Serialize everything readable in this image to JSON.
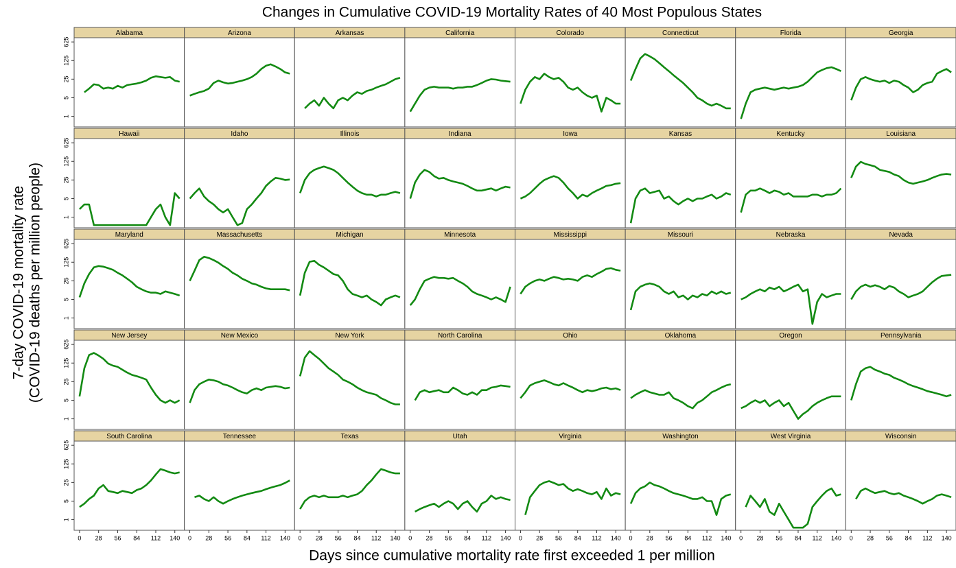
{
  "chart_data": {
    "type": "line",
    "title": "Changes in Cumulative COVID-19 Mortality Rates of 40 Most Populous States",
    "xlabel": "Days since cumulative mortality rate first exceeded 1 per million",
    "ylabel": [
      "7-day COVID-19 mortality rate",
      "(COVID-19 deaths per million people)"
    ],
    "log_scale_y": true,
    "xlim": [
      -8,
      154
    ],
    "xticks": [
      0,
      28,
      56,
      84,
      112,
      140
    ],
    "ylim": [
      0.4,
      900
    ],
    "yticks": [
      1,
      5,
      25,
      125,
      625
    ],
    "x": [
      0,
      7,
      14,
      21,
      28,
      35,
      42,
      49,
      56,
      63,
      70,
      77,
      84,
      91,
      98,
      105,
      112,
      119,
      126,
      133,
      140,
      147
    ],
    "series": [
      {
        "name": "Alabama",
        "color": "#138a13",
        "values": [
          null,
          8,
          11,
          16,
          15,
          11,
          12,
          11,
          14,
          12,
          15,
          16,
          17,
          19,
          22,
          28,
          32,
          30,
          28,
          30,
          22,
          20
        ]
      },
      {
        "name": "Arizona",
        "color": "#138a13",
        "values": [
          6,
          7,
          8,
          9,
          11,
          18,
          22,
          19,
          17,
          18,
          20,
          22,
          25,
          30,
          40,
          60,
          80,
          90,
          75,
          60,
          45,
          40
        ]
      },
      {
        "name": "Arkansas",
        "color": "#138a13",
        "values": [
          null,
          2,
          3,
          4,
          2.5,
          5,
          3,
          2,
          4,
          5,
          4,
          6,
          8,
          7,
          9,
          10,
          12,
          14,
          16,
          20,
          25,
          28
        ]
      },
      {
        "name": "California",
        "color": "#138a13",
        "values": [
          1.5,
          3,
          6,
          10,
          12,
          13,
          12,
          12,
          12,
          11,
          12,
          12,
          13,
          13,
          15,
          18,
          22,
          25,
          24,
          22,
          21,
          20
        ]
      },
      {
        "name": "Colorado",
        "color": "#138a13",
        "values": [
          3,
          10,
          20,
          30,
          25,
          40,
          30,
          25,
          28,
          20,
          12,
          10,
          12,
          8,
          6,
          5,
          6,
          1.5,
          5,
          4,
          3,
          3
        ]
      },
      {
        "name": "Connecticut",
        "color": "#138a13",
        "values": [
          22,
          60,
          150,
          220,
          180,
          140,
          100,
          70,
          50,
          35,
          25,
          18,
          12,
          8,
          5,
          4,
          3,
          2.5,
          3,
          2.5,
          2,
          2
        ]
      },
      {
        "name": "Florida",
        "color": "#138a13",
        "values": [
          0.8,
          3,
          8,
          10,
          11,
          12,
          11,
          10,
          11,
          12,
          11,
          12,
          13,
          15,
          20,
          30,
          45,
          55,
          65,
          70,
          60,
          50
        ]
      },
      {
        "name": "Georgia",
        "color": "#138a13",
        "values": [
          4,
          12,
          25,
          30,
          25,
          22,
          20,
          22,
          18,
          22,
          20,
          15,
          12,
          8,
          10,
          15,
          18,
          20,
          40,
          50,
          60,
          45
        ]
      },
      {
        "name": "Hawaii",
        "color": "#138a13",
        "values": [
          2,
          3,
          3,
          0.5,
          0.5,
          0.5,
          0.5,
          0.5,
          0.5,
          0.5,
          0.5,
          0.5,
          0.5,
          0.5,
          0.5,
          1,
          2,
          3,
          1,
          0.5,
          8,
          5
        ]
      },
      {
        "name": "Idaho",
        "color": "#138a13",
        "values": [
          5,
          8,
          12,
          6,
          4,
          3,
          2,
          1.5,
          2,
          1,
          0.5,
          0.6,
          2,
          3,
          5,
          8,
          15,
          22,
          30,
          28,
          25,
          26
        ]
      },
      {
        "name": "Illinois",
        "color": "#138a13",
        "values": [
          8,
          25,
          45,
          60,
          70,
          80,
          70,
          60,
          45,
          30,
          20,
          14,
          10,
          8,
          7,
          7,
          6,
          7,
          7,
          8,
          9,
          8
        ]
      },
      {
        "name": "Indiana",
        "color": "#138a13",
        "values": [
          5,
          20,
          40,
          60,
          50,
          35,
          28,
          30,
          25,
          22,
          20,
          18,
          15,
          12,
          10,
          10,
          11,
          12,
          10,
          12,
          14,
          13
        ]
      },
      {
        "name": "Iowa",
        "color": "#138a13",
        "values": [
          5,
          6,
          8,
          12,
          18,
          25,
          30,
          35,
          30,
          20,
          12,
          8,
          5,
          7,
          6,
          8,
          10,
          12,
          15,
          16,
          18,
          19
        ]
      },
      {
        "name": "Kansas",
        "color": "#138a13",
        "values": [
          0.6,
          5,
          10,
          12,
          8,
          9,
          10,
          5,
          6,
          4,
          3,
          4,
          5,
          4,
          5,
          5,
          6,
          7,
          5,
          6,
          8,
          7
        ]
      },
      {
        "name": "Kentucky",
        "color": "#138a13",
        "values": [
          1.5,
          7,
          10,
          10,
          12,
          10,
          8,
          10,
          9,
          7,
          8,
          6,
          6,
          6,
          6,
          7,
          7,
          6,
          7,
          7,
          8,
          12
        ]
      },
      {
        "name": "Louisiana",
        "color": "#138a13",
        "values": [
          30,
          80,
          120,
          100,
          90,
          80,
          60,
          55,
          50,
          40,
          35,
          25,
          20,
          18,
          20,
          22,
          25,
          30,
          35,
          40,
          42,
          40
        ]
      },
      {
        "name": "Maryland",
        "color": "#138a13",
        "values": [
          6,
          20,
          45,
          80,
          90,
          85,
          75,
          65,
          50,
          40,
          30,
          22,
          15,
          12,
          10,
          9,
          9,
          8,
          10,
          9,
          8,
          7
        ]
      },
      {
        "name": "Massachusetts",
        "color": "#138a13",
        "values": [
          25,
          60,
          150,
          200,
          180,
          150,
          120,
          90,
          70,
          50,
          40,
          30,
          25,
          20,
          18,
          15,
          13,
          12,
          12,
          12,
          12,
          11
        ]
      },
      {
        "name": "Michigan",
        "color": "#138a13",
        "values": [
          7,
          50,
          130,
          140,
          100,
          80,
          60,
          45,
          40,
          25,
          12,
          8,
          7,
          6,
          7,
          5,
          4,
          3,
          5,
          6,
          7,
          6
        ]
      },
      {
        "name": "Minnesota",
        "color": "#138a13",
        "values": [
          3,
          5,
          12,
          25,
          30,
          35,
          32,
          32,
          30,
          32,
          25,
          20,
          15,
          10,
          8,
          7,
          6,
          5,
          6,
          5,
          4,
          15
        ]
      },
      {
        "name": "Mississippi",
        "color": "#138a13",
        "values": [
          8,
          15,
          20,
          25,
          28,
          25,
          30,
          35,
          32,
          28,
          30,
          28,
          25,
          35,
          40,
          35,
          45,
          55,
          70,
          75,
          65,
          60
        ]
      },
      {
        "name": "Missouri",
        "color": "#138a13",
        "values": [
          2,
          10,
          15,
          18,
          20,
          18,
          15,
          10,
          8,
          10,
          6,
          7,
          5,
          7,
          6,
          8,
          7,
          10,
          8,
          10,
          8,
          9
        ]
      },
      {
        "name": "Nebraska",
        "color": "#138a13",
        "values": [
          5,
          6,
          8,
          10,
          12,
          10,
          14,
          12,
          15,
          10,
          12,
          15,
          18,
          10,
          12,
          0.6,
          4,
          8,
          6,
          7,
          8,
          8
        ]
      },
      {
        "name": "Nevada",
        "color": "#138a13",
        "values": [
          5,
          10,
          15,
          18,
          15,
          17,
          15,
          12,
          16,
          14,
          10,
          8,
          6,
          7,
          8,
          10,
          15,
          22,
          30,
          38,
          40,
          42
        ]
      },
      {
        "name": "New Jersey",
        "color": "#138a13",
        "values": [
          7,
          80,
          250,
          300,
          240,
          180,
          120,
          100,
          90,
          70,
          55,
          45,
          40,
          35,
          30,
          15,
          8,
          5,
          4,
          5,
          4,
          5
        ]
      },
      {
        "name": "New Mexico",
        "color": "#138a13",
        "values": [
          4,
          12,
          20,
          25,
          30,
          28,
          25,
          20,
          18,
          15,
          12,
          10,
          9,
          12,
          14,
          12,
          15,
          16,
          17,
          16,
          14,
          15
        ]
      },
      {
        "name": "New York",
        "color": "#138a13",
        "values": [
          40,
          200,
          350,
          250,
          180,
          120,
          80,
          60,
          45,
          30,
          25,
          20,
          15,
          12,
          10,
          9,
          8,
          6,
          5,
          4,
          3.5,
          3.5
        ]
      },
      {
        "name": "North Carolina",
        "color": "#138a13",
        "values": [
          null,
          5,
          10,
          12,
          10,
          11,
          12,
          10,
          10,
          15,
          12,
          9,
          8,
          10,
          8,
          12,
          12,
          15,
          16,
          18,
          17,
          16
        ]
      },
      {
        "name": "Ohio",
        "color": "#138a13",
        "values": [
          6,
          10,
          18,
          22,
          25,
          28,
          24,
          20,
          18,
          22,
          18,
          15,
          12,
          10,
          12,
          11,
          12,
          14,
          15,
          13,
          14,
          12
        ]
      },
      {
        "name": "Oklahoma",
        "color": "#138a13",
        "values": [
          6,
          8,
          10,
          12,
          10,
          9,
          8,
          8,
          10,
          6,
          5,
          4,
          3,
          2.5,
          4,
          5,
          7,
          10,
          12,
          15,
          18,
          20
        ]
      },
      {
        "name": "Oregon",
        "color": "#138a13",
        "values": [
          2.5,
          3,
          4,
          5,
          4,
          5,
          3,
          4,
          5,
          3,
          4,
          2,
          1,
          1.5,
          2,
          3,
          4,
          5,
          6,
          7,
          7,
          7
        ]
      },
      {
        "name": "Pennsylvania",
        "color": "#138a13",
        "values": [
          5,
          20,
          60,
          80,
          90,
          70,
          60,
          50,
          45,
          35,
          30,
          25,
          20,
          17,
          15,
          13,
          11,
          10,
          9,
          8,
          7,
          8
        ]
      },
      {
        "name": "South Carolina",
        "color": "#138a13",
        "values": [
          3,
          4,
          6,
          8,
          15,
          20,
          12,
          11,
          10,
          12,
          11,
          10,
          13,
          15,
          20,
          30,
          50,
          80,
          70,
          60,
          55,
          60
        ]
      },
      {
        "name": "Tennessee",
        "color": "#138a13",
        "values": [
          null,
          7,
          8,
          6,
          5,
          7,
          5,
          4,
          5,
          6,
          7,
          8,
          9,
          10,
          11,
          12,
          14,
          16,
          18,
          20,
          24,
          30
        ]
      },
      {
        "name": "Texas",
        "color": "#138a13",
        "values": [
          2.5,
          5,
          7,
          8,
          7,
          8,
          7,
          7,
          7,
          8,
          7,
          8,
          9,
          12,
          20,
          30,
          50,
          80,
          70,
          60,
          55,
          55
        ]
      },
      {
        "name": "Utah",
        "color": "#138a13",
        "values": [
          null,
          2,
          2.5,
          3,
          3.5,
          4,
          3,
          4,
          5,
          4,
          2.5,
          4,
          5,
          3,
          2,
          4,
          5,
          8,
          6,
          7,
          6,
          5.5
        ]
      },
      {
        "name": "Virginia",
        "color": "#138a13",
        "values": [
          null,
          1.5,
          7,
          12,
          20,
          25,
          28,
          24,
          20,
          22,
          15,
          12,
          14,
          12,
          10,
          9,
          11,
          6,
          15,
          8,
          10,
          9
        ]
      },
      {
        "name": "Washington",
        "color": "#138a13",
        "values": [
          4,
          10,
          15,
          18,
          25,
          20,
          18,
          15,
          12,
          10,
          9,
          8,
          7,
          6,
          6,
          7,
          5,
          5,
          1.5,
          6,
          8,
          9
        ]
      },
      {
        "name": "West Virginia",
        "color": "#138a13",
        "values": [
          null,
          3,
          8,
          5,
          3,
          6,
          2,
          1.5,
          4,
          2,
          1,
          0.5,
          0.5,
          0.5,
          0.7,
          3,
          5,
          8,
          12,
          15,
          8,
          9
        ]
      },
      {
        "name": "Wisconsin",
        "color": "#138a13",
        "values": [
          null,
          6,
          12,
          15,
          12,
          10,
          11,
          12,
          10,
          9,
          10,
          8,
          7,
          6,
          5,
          4,
          5,
          6,
          8,
          9,
          8,
          7
        ]
      }
    ]
  }
}
